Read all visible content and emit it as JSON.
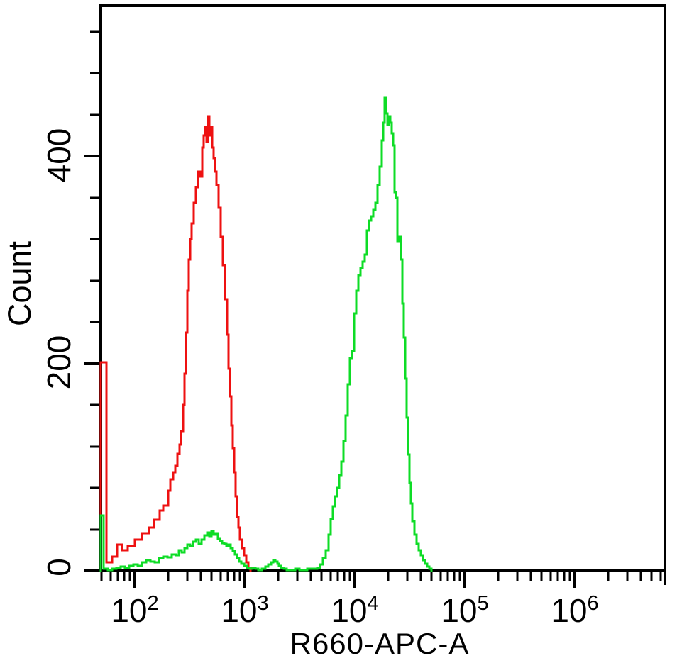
{
  "figure": {
    "background": "#ffffff",
    "frame_color": "#000000"
  },
  "chart_data": {
    "type": "line",
    "subtype": "flow-cytometry-histogram-overlay",
    "title": "",
    "xlabel": "R660-APC-A",
    "ylabel": "Count",
    "x_scale": "log10",
    "xlim_log10": [
      1.69,
      6.82
    ],
    "ylim": [
      0,
      545
    ],
    "grid": "off",
    "legend": "none",
    "x_major_ticks": [
      {
        "base": "10",
        "exp": "2",
        "value": 100
      },
      {
        "base": "10",
        "exp": "3",
        "value": 1000
      },
      {
        "base": "10",
        "exp": "4",
        "value": 10000
      },
      {
        "base": "10",
        "exp": "5",
        "value": 100000
      },
      {
        "base": "10",
        "exp": "6",
        "value": 1000000
      }
    ],
    "x_minor_tick_values": [
      50,
      60,
      70,
      80,
      90,
      200,
      300,
      400,
      500,
      600,
      700,
      800,
      900,
      2000,
      3000,
      4000,
      5000,
      6000,
      7000,
      8000,
      9000,
      20000,
      30000,
      40000,
      50000,
      60000,
      70000,
      80000,
      90000,
      200000,
      300000,
      400000,
      500000,
      600000,
      700000,
      800000,
      900000,
      2000000,
      3000000,
      4000000,
      5000000,
      6000000
    ],
    "y_labeled_ticks": [
      {
        "label": "0",
        "value": 0
      },
      {
        "label": "200",
        "value": 200
      },
      {
        "label": "400",
        "value": 400
      }
    ],
    "y_minor_tick_values": [
      40,
      80,
      120,
      160,
      240,
      280,
      320,
      360,
      440,
      480,
      520
    ],
    "series": [
      {
        "name": "red-histogram",
        "color": "#ee1111",
        "peak_value": 462,
        "peak_count": 438,
        "points": [
          [
            49,
            0
          ],
          [
            49,
            201
          ],
          [
            55,
            8
          ],
          [
            62,
            14
          ],
          [
            69,
            25
          ],
          [
            77,
            20
          ],
          [
            86,
            24
          ],
          [
            100,
            30
          ],
          [
            116,
            36
          ],
          [
            135,
            42
          ],
          [
            149,
            49
          ],
          [
            168,
            58
          ],
          [
            181,
            63
          ],
          [
            201,
            77
          ],
          [
            210,
            88
          ],
          [
            223,
            95
          ],
          [
            233,
            101
          ],
          [
            244,
            113
          ],
          [
            255,
            122
          ],
          [
            263,
            135
          ],
          [
            275,
            160
          ],
          [
            283,
            190
          ],
          [
            292,
            230
          ],
          [
            300,
            270
          ],
          [
            310,
            300
          ],
          [
            319,
            320
          ],
          [
            328,
            335
          ],
          [
            343,
            355
          ],
          [
            359,
            370
          ],
          [
            375,
            385
          ],
          [
            392,
            380
          ],
          [
            410,
            408
          ],
          [
            423,
            420
          ],
          [
            435,
            428
          ],
          [
            448,
            414
          ],
          [
            462,
            438
          ],
          [
            476,
            420
          ],
          [
            491,
            428
          ],
          [
            505,
            408
          ],
          [
            520,
            398
          ],
          [
            536,
            385
          ],
          [
            553,
            372
          ],
          [
            578,
            350
          ],
          [
            605,
            322
          ],
          [
            632,
            295
          ],
          [
            661,
            262
          ],
          [
            691,
            228
          ],
          [
            712,
            195
          ],
          [
            733,
            168
          ],
          [
            756,
            140
          ],
          [
            778,
            118
          ],
          [
            802,
            95
          ],
          [
            826,
            72
          ],
          [
            850,
            52
          ],
          [
            876,
            42
          ],
          [
            902,
            30
          ],
          [
            942,
            22
          ],
          [
            984,
            15
          ],
          [
            1029,
            8
          ],
          [
            1075,
            3
          ],
          [
            1124,
            0
          ]
        ]
      },
      {
        "name": "green-histogram",
        "color": "#0edc26",
        "peak_value": 18665,
        "peak_count": 456,
        "points": [
          [
            49,
            0
          ],
          [
            49,
            53
          ],
          [
            52,
            2
          ],
          [
            57,
            1
          ],
          [
            62,
            2
          ],
          [
            68,
            3
          ],
          [
            74,
            4
          ],
          [
            81,
            3
          ],
          [
            89,
            5
          ],
          [
            97,
            6
          ],
          [
            106,
            5
          ],
          [
            116,
            8
          ],
          [
            127,
            10
          ],
          [
            139,
            9
          ],
          [
            152,
            8
          ],
          [
            166,
            12
          ],
          [
            181,
            14
          ],
          [
            198,
            13
          ],
          [
            217,
            16
          ],
          [
            237,
            15
          ],
          [
            251,
            20
          ],
          [
            266,
            18
          ],
          [
            283,
            22
          ],
          [
            300,
            25
          ],
          [
            319,
            24
          ],
          [
            338,
            28
          ],
          [
            359,
            30
          ],
          [
            381,
            26
          ],
          [
            404,
            30
          ],
          [
            428,
            34
          ],
          [
            455,
            37
          ],
          [
            476,
            33
          ],
          [
            498,
            38
          ],
          [
            520,
            35
          ],
          [
            544,
            36
          ],
          [
            569,
            31
          ],
          [
            595,
            29
          ],
          [
            623,
            27
          ],
          [
            651,
            26
          ],
          [
            681,
            24
          ],
          [
            712,
            25
          ],
          [
            743,
            22
          ],
          [
            777,
            19
          ],
          [
            813,
            16
          ],
          [
            850,
            12
          ],
          [
            887,
            9
          ],
          [
            929,
            7
          ],
          [
            984,
            5
          ],
          [
            1043,
            3
          ],
          [
            1109,
            2
          ],
          [
            1173,
            3
          ],
          [
            1242,
            2
          ],
          [
            1334,
            1
          ],
          [
            1432,
            2
          ],
          [
            1537,
            4
          ],
          [
            1629,
            6
          ],
          [
            1727,
            8
          ],
          [
            1805,
            10
          ],
          [
            1885,
            9
          ],
          [
            1968,
            7
          ],
          [
            2055,
            5
          ],
          [
            2146,
            3
          ],
          [
            2274,
            2
          ],
          [
            2410,
            1
          ],
          [
            2627,
            1
          ],
          [
            2864,
            2
          ],
          [
            3122,
            1
          ],
          [
            3404,
            1
          ],
          [
            3710,
            2
          ],
          [
            4045,
            2
          ],
          [
            4550,
            3
          ],
          [
            4831,
            6
          ],
          [
            5125,
            12
          ],
          [
            5437,
            20
          ],
          [
            5768,
            35
          ],
          [
            6036,
            50
          ],
          [
            6310,
            62
          ],
          [
            6596,
            72
          ],
          [
            6897,
            80
          ],
          [
            7211,
            92
          ],
          [
            7540,
            105
          ],
          [
            7883,
            125
          ],
          [
            8242,
            150
          ],
          [
            8617,
            180
          ],
          [
            9010,
            205
          ],
          [
            9420,
            212
          ],
          [
            9849,
            248
          ],
          [
            10298,
            270
          ],
          [
            10767,
            285
          ],
          [
            11257,
            292
          ],
          [
            11769,
            298
          ],
          [
            12305,
            305
          ],
          [
            12865,
            328
          ],
          [
            13450,
            338
          ],
          [
            14062,
            342
          ],
          [
            14702,
            348
          ],
          [
            15371,
            355
          ],
          [
            16071,
            372
          ],
          [
            16802,
            390
          ],
          [
            17567,
            415
          ],
          [
            18100,
            432
          ],
          [
            18665,
            456
          ],
          [
            19243,
            441
          ],
          [
            19838,
            430
          ],
          [
            20452,
            438
          ],
          [
            21086,
            432
          ],
          [
            21739,
            422
          ],
          [
            22412,
            410
          ],
          [
            23106,
            365
          ],
          [
            23821,
            360
          ],
          [
            24559,
            318
          ],
          [
            25319,
            322
          ],
          [
            26103,
            300
          ],
          [
            26911,
            258
          ],
          [
            27744,
            225
          ],
          [
            28603,
            185
          ],
          [
            29489,
            148
          ],
          [
            30402,
            112
          ],
          [
            31343,
            85
          ],
          [
            32313,
            65
          ],
          [
            33343,
            48
          ],
          [
            34834,
            35
          ],
          [
            36400,
            26
          ],
          [
            38100,
            20
          ],
          [
            39811,
            15
          ],
          [
            41600,
            10
          ],
          [
            43550,
            7
          ],
          [
            45499,
            4
          ],
          [
            47534,
            2
          ],
          [
            49773,
            0
          ]
        ]
      }
    ]
  }
}
